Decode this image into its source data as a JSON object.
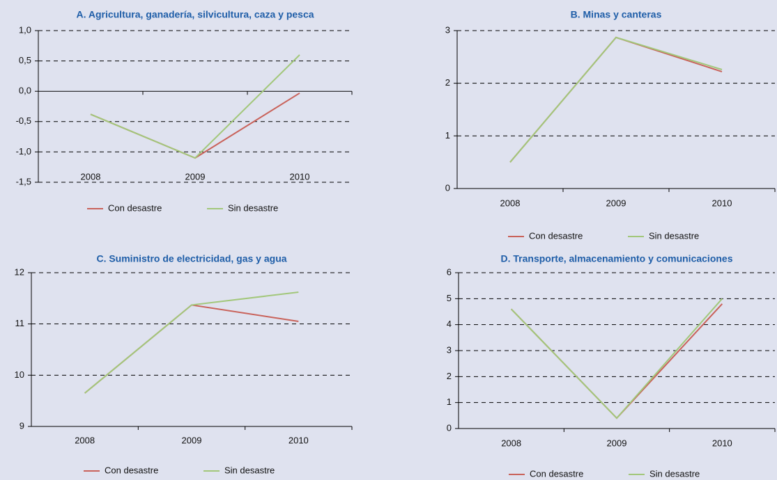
{
  "chart_data": [
    {
      "type": "line",
      "title": "A. Agricultura, ganadería, silvicultura, caza y pesca",
      "categories": [
        "2008",
        "2009",
        "2010"
      ],
      "series": [
        {
          "name": "Con desastre",
          "color": "#c9625a",
          "values": [
            -0.38,
            -1.1,
            -0.03
          ]
        },
        {
          "name": "Sin desastre",
          "color": "#a2c77a",
          "values": [
            -0.38,
            -1.1,
            0.6
          ]
        }
      ],
      "ylim": [
        -1.5,
        1.0
      ],
      "yticks": [
        {
          "value": -1.5,
          "label": "-1,5"
        },
        {
          "value": -1.0,
          "label": "-1,0"
        },
        {
          "value": -0.5,
          "label": "-0,5"
        },
        {
          "value": 0,
          "label": "0,0"
        },
        {
          "value": 0.5,
          "label": "0,5"
        },
        {
          "value": 1.0,
          "label": "1,0"
        }
      ],
      "grid": true,
      "legend": "bottom"
    },
    {
      "type": "line",
      "title": "B. Minas y canteras",
      "categories": [
        "2008",
        "2009",
        "2010"
      ],
      "series": [
        {
          "name": "Con desastre",
          "color": "#c9625a",
          "values": [
            0.5,
            2.87,
            2.22
          ]
        },
        {
          "name": "Sin desastre",
          "color": "#a2c77a",
          "values": [
            0.5,
            2.87,
            2.26
          ]
        }
      ],
      "ylim": [
        0,
        3
      ],
      "yticks": [
        0,
        1,
        2,
        3
      ],
      "grid": true,
      "legend": "bottom"
    },
    {
      "type": "line",
      "title": "C. Suministro de electricidad, gas y agua",
      "categories": [
        "2008",
        "2009",
        "2010"
      ],
      "series": [
        {
          "name": "Con desastre",
          "color": "#c9625a",
          "values": [
            9.65,
            11.37,
            11.05
          ]
        },
        {
          "name": "Sin desastre",
          "color": "#a2c77a",
          "values": [
            9.65,
            11.37,
            11.62
          ]
        }
      ],
      "ylim": [
        9,
        12
      ],
      "yticks": [
        9,
        10,
        11,
        12
      ],
      "grid": true,
      "legend": "bottom"
    },
    {
      "type": "line",
      "title": "D. Transporte, almacenamiento y comunicaciones",
      "categories": [
        "2008",
        "2009",
        "2010"
      ],
      "series": [
        {
          "name": "Con desastre",
          "color": "#c9625a",
          "values": [
            4.6,
            0.4,
            4.8
          ]
        },
        {
          "name": "Sin desastre",
          "color": "#a2c77a",
          "values": [
            4.6,
            0.4,
            5.0
          ]
        }
      ],
      "ylim": [
        0,
        6
      ],
      "yticks": [
        0,
        1,
        2,
        3,
        4,
        5,
        6
      ],
      "grid": true,
      "legend": "bottom"
    }
  ]
}
